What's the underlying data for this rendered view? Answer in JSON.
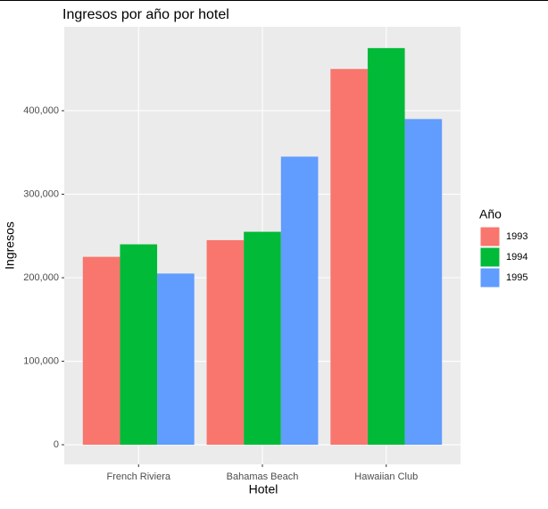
{
  "chart_data": {
    "type": "bar",
    "title": "Ingresos por año por hotel",
    "x_label": "Hotel",
    "y_label": "Ingresos",
    "legend_title": "Año",
    "categories": [
      "French Riviera",
      "Bahamas Beach",
      "Hawaiian Club"
    ],
    "series": [
      {
        "name": "1993",
        "color": "#f8766d",
        "values": [
          225000,
          245000,
          450000
        ]
      },
      {
        "name": "1994",
        "color": "#00ba38",
        "values": [
          240000,
          255000,
          475000
        ]
      },
      {
        "name": "1995",
        "color": "#619cff",
        "values": [
          205000,
          345000,
          390000
        ]
      }
    ],
    "ylim": [
      -23500,
      500500
    ],
    "yticks": [
      0,
      {
        "value": 100000,
        "label": "100,000"
      },
      {
        "value": 200000,
        "label": "200,000"
      },
      {
        "value": 300000,
        "label": "300,000"
      },
      {
        "value": 400000,
        "label": "400,000"
      }
    ],
    "grid": true,
    "legend_position": "right"
  }
}
